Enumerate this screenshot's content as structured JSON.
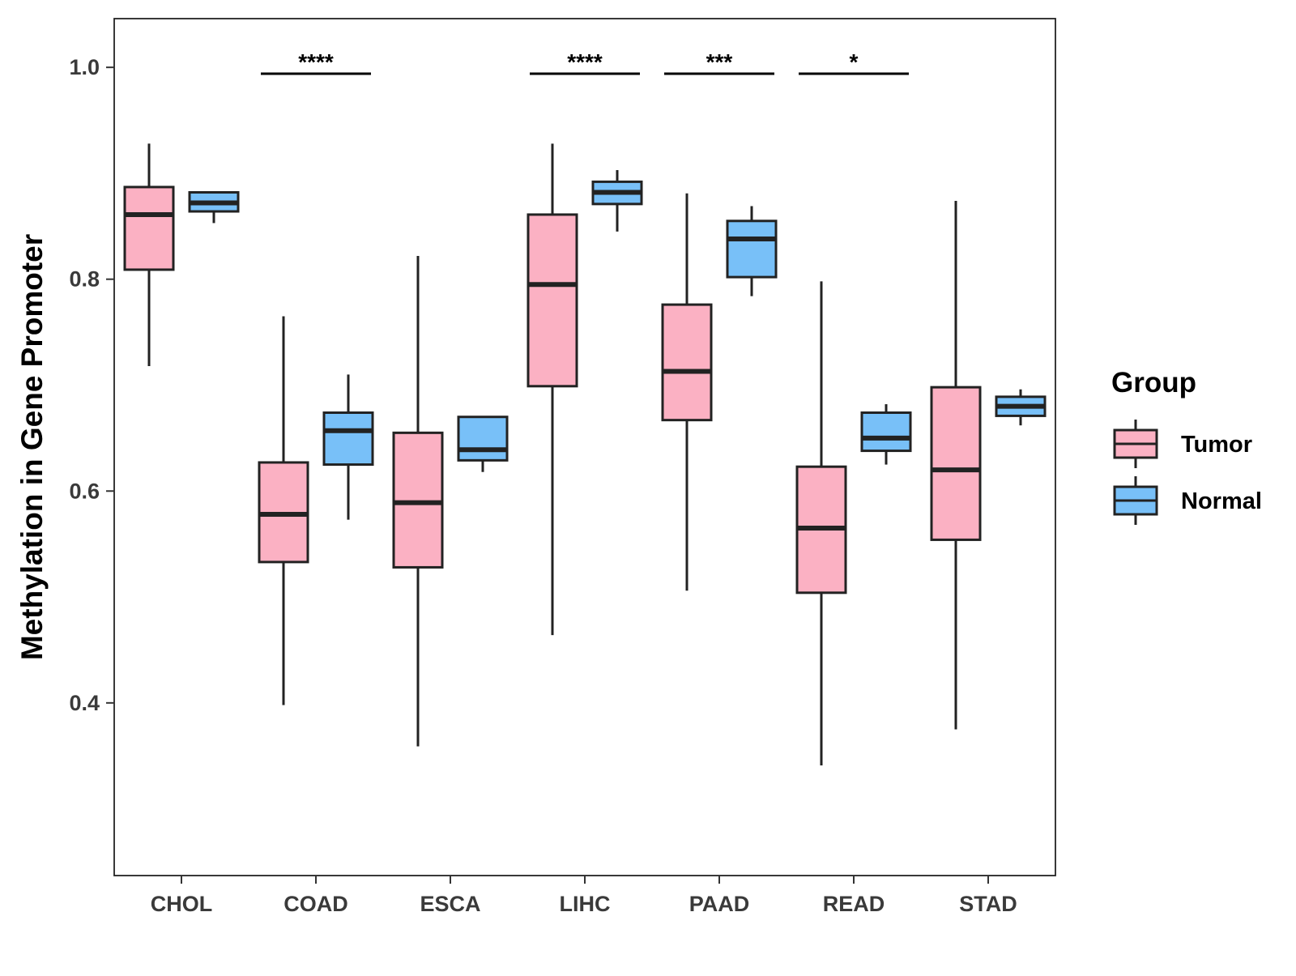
{
  "chart_data": {
    "type": "boxplot",
    "title": "",
    "xlabel": "",
    "ylabel": "Methylation in Gene Promoter",
    "ylim": [
      0.237,
      1.046
    ],
    "yticks": [
      "0.4",
      "0.6",
      "0.8",
      "1.0"
    ],
    "categories": [
      "CHOL",
      "COAD",
      "ESCA",
      "LIHC",
      "PAAD",
      "READ",
      "STAD"
    ],
    "legend": {
      "title": "Group",
      "position": "right",
      "entries": [
        "Tumor",
        "Normal"
      ]
    },
    "colors": {
      "Tumor": "#fbb1c3",
      "Normal": "#78c0f8",
      "outline": "#222222"
    },
    "series": [
      {
        "name": "Tumor",
        "boxes": [
          {
            "category": "CHOL",
            "min": 0.718,
            "q1": 0.809,
            "median": 0.861,
            "q3": 0.887,
            "max": 0.928
          },
          {
            "category": "COAD",
            "min": 0.398,
            "q1": 0.533,
            "median": 0.578,
            "q3": 0.627,
            "max": 0.765
          },
          {
            "category": "ESCA",
            "min": 0.359,
            "q1": 0.528,
            "median": 0.589,
            "q3": 0.655,
            "max": 0.822
          },
          {
            "category": "LIHC",
            "min": 0.464,
            "q1": 0.699,
            "median": 0.795,
            "q3": 0.861,
            "max": 0.928
          },
          {
            "category": "PAAD",
            "min": 0.506,
            "q1": 0.667,
            "median": 0.713,
            "q3": 0.776,
            "max": 0.881
          },
          {
            "category": "READ",
            "min": 0.341,
            "q1": 0.504,
            "median": 0.565,
            "q3": 0.623,
            "max": 0.798
          },
          {
            "category": "STAD",
            "min": 0.375,
            "q1": 0.554,
            "median": 0.62,
            "q3": 0.698,
            "max": 0.874
          }
        ]
      },
      {
        "name": "Normal",
        "boxes": [
          {
            "category": "CHOL",
            "min": 0.853,
            "q1": 0.864,
            "median": 0.872,
            "q3": 0.882,
            "max": 0.882
          },
          {
            "category": "COAD",
            "min": 0.573,
            "q1": 0.625,
            "median": 0.657,
            "q3": 0.674,
            "max": 0.71
          },
          {
            "category": "ESCA",
            "min": 0.618,
            "q1": 0.629,
            "median": 0.639,
            "q3": 0.67,
            "max": 0.67
          },
          {
            "category": "LIHC",
            "min": 0.845,
            "q1": 0.871,
            "median": 0.882,
            "q3": 0.892,
            "max": 0.903
          },
          {
            "category": "PAAD",
            "min": 0.784,
            "q1": 0.802,
            "median": 0.838,
            "q3": 0.855,
            "max": 0.869
          },
          {
            "category": "READ",
            "min": 0.625,
            "q1": 0.638,
            "median": 0.65,
            "q3": 0.674,
            "max": 0.682
          },
          {
            "category": "STAD",
            "min": 0.662,
            "q1": 0.671,
            "median": 0.68,
            "q3": 0.689,
            "max": 0.696
          }
        ]
      }
    ],
    "significance": [
      {
        "category": "COAD",
        "label": "****",
        "y": 0.994
      },
      {
        "category": "LIHC",
        "label": "****",
        "y": 0.994
      },
      {
        "category": "PAAD",
        "label": "***",
        "y": 0.994
      },
      {
        "category": "READ",
        "label": "*",
        "y": 0.994
      }
    ]
  }
}
